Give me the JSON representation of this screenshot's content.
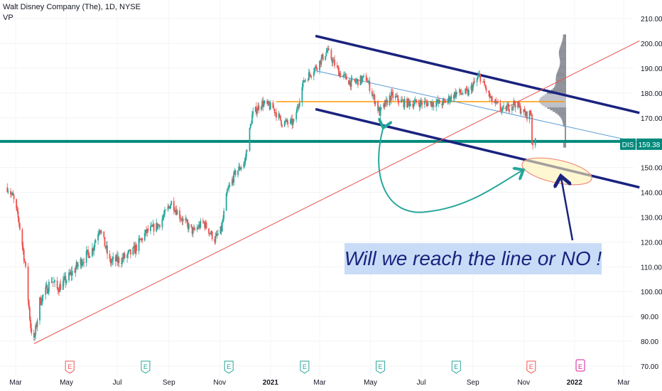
{
  "header": {
    "symbol_title": "Walt Disney Company (The), 1D, NYSE",
    "indicator": "VP"
  },
  "annotation": {
    "text": "Will we reach the line or NO !"
  },
  "colors": {
    "up_candle": "#26a69a",
    "down_candle": "#ef5350",
    "channel": "#1a237e",
    "horizontal_level": "#00897b",
    "trendline": "#ef5350",
    "poc_line": "#ff9800",
    "annotation_bg": "#c9dcf7",
    "volume_profile": "#787b86",
    "earnings_up": "#26a69a",
    "earnings_down": "#ef5350",
    "dividend": "#d81b9c"
  },
  "chart_data": {
    "type": "candlestick",
    "title": "Walt Disney Company (The), 1D, NYSE",
    "x_axis": {
      "ticks": [
        "Mar",
        "May",
        "Jul",
        "Sep",
        "Nov",
        "2021",
        "Mar",
        "May",
        "Jul",
        "Sep",
        "Nov",
        "2022",
        "Mar"
      ]
    },
    "y_axis": {
      "side": "right",
      "ylim": [
        68,
        212
      ],
      "ticks": [
        "210.00",
        "200.00",
        "190.00",
        "180.00",
        "170.00",
        "160.00",
        "150.00",
        "140.00",
        "130.00",
        "120.00",
        "110.00",
        "100.00",
        "90.00",
        "80.00",
        "70.00"
      ]
    },
    "price_label": {
      "symbol": "DIS",
      "value": "159.38",
      "value_num": 159.38
    },
    "price_path": [
      [
        "2020-02-20",
        142
      ],
      [
        "2020-02-27",
        138
      ],
      [
        "2020-03-05",
        128
      ],
      [
        "2020-03-12",
        112
      ],
      [
        "2020-03-19",
        86
      ],
      [
        "2020-03-23",
        80
      ],
      [
        "2020-03-30",
        96
      ],
      [
        "2020-04-06",
        100
      ],
      [
        "2020-04-13",
        105
      ],
      [
        "2020-04-20",
        101
      ],
      [
        "2020-05-04",
        106
      ],
      [
        "2020-05-18",
        112
      ],
      [
        "2020-06-01",
        117
      ],
      [
        "2020-06-10",
        126
      ],
      [
        "2020-06-22",
        112
      ],
      [
        "2020-07-06",
        113
      ],
      [
        "2020-07-20",
        116
      ],
      [
        "2020-08-05",
        124
      ],
      [
        "2020-08-20",
        127
      ],
      [
        "2020-09-04",
        136
      ],
      [
        "2020-09-15",
        130
      ],
      [
        "2020-09-30",
        124
      ],
      [
        "2020-10-12",
        128
      ],
      [
        "2020-10-26",
        121
      ],
      [
        "2020-11-03",
        125
      ],
      [
        "2020-11-10",
        140
      ],
      [
        "2020-11-20",
        148
      ],
      [
        "2020-12-01",
        152
      ],
      [
        "2020-12-10",
        171
      ],
      [
        "2020-12-21",
        176
      ],
      [
        "2021-01-04",
        174
      ],
      [
        "2021-01-15",
        168
      ],
      [
        "2021-01-29",
        168
      ],
      [
        "2021-02-10",
        185
      ],
      [
        "2021-02-26",
        191
      ],
      [
        "2021-03-10",
        197
      ],
      [
        "2021-03-25",
        188
      ],
      [
        "2021-04-08",
        184
      ],
      [
        "2021-04-26",
        186
      ],
      [
        "2021-05-12",
        172
      ],
      [
        "2021-05-26",
        179
      ],
      [
        "2021-06-10",
        176
      ],
      [
        "2021-06-28",
        176
      ],
      [
        "2021-07-14",
        176
      ],
      [
        "2021-07-28",
        176
      ],
      [
        "2021-08-12",
        180
      ],
      [
        "2021-08-26",
        180
      ],
      [
        "2021-09-09",
        187
      ],
      [
        "2021-09-23",
        177
      ],
      [
        "2021-10-07",
        173
      ],
      [
        "2021-10-21",
        176
      ],
      [
        "2021-11-04",
        171
      ],
      [
        "2021-11-10",
        172
      ],
      [
        "2021-11-11",
        160
      ],
      [
        "2021-11-15",
        160
      ]
    ],
    "horizontal_levels": [
      {
        "name": "support",
        "value": 160.5,
        "x_start": "2020-01-15",
        "x_end": "2022-04-01"
      },
      {
        "name": "poc",
        "value": 176.5,
        "x_start": "2021-01-08",
        "x_end": "2021-12-20"
      }
    ],
    "trendlines": [
      {
        "name": "channel-upper",
        "from": [
          "2021-02-24",
          203
        ],
        "to": [
          "2022-03-20",
          172
        ]
      },
      {
        "name": "channel-lower",
        "from": [
          "2021-02-24",
          173.5
        ],
        "to": [
          "2022-03-20",
          142
        ]
      },
      {
        "name": "channel-mid",
        "from": [
          "2021-02-24",
          189
        ],
        "to": [
          "2022-03-20",
          160
        ]
      },
      {
        "name": "long-trend",
        "from": [
          "2020-03-23",
          79
        ],
        "to": [
          "2022-03-20",
          201
        ]
      }
    ],
    "volume_profile_price_range": [
      158,
      203
    ],
    "events": [
      {
        "date": "2020-05-05",
        "label": "E",
        "kind": "earnings-down"
      },
      {
        "date": "2020-08-04",
        "label": "E",
        "kind": "earnings-up"
      },
      {
        "date": "2020-11-12",
        "label": "E",
        "kind": "earnings-up"
      },
      {
        "date": "2021-02-11",
        "label": "E",
        "kind": "earnings-up"
      },
      {
        "date": "2021-05-13",
        "label": "E",
        "kind": "earnings-up"
      },
      {
        "date": "2021-08-12",
        "label": "E",
        "kind": "earnings-up"
      },
      {
        "date": "2021-11-10",
        "label": "E",
        "kind": "earnings-down"
      },
      {
        "date": "2022-01-08",
        "label": "E",
        "kind": "dividend"
      }
    ]
  }
}
